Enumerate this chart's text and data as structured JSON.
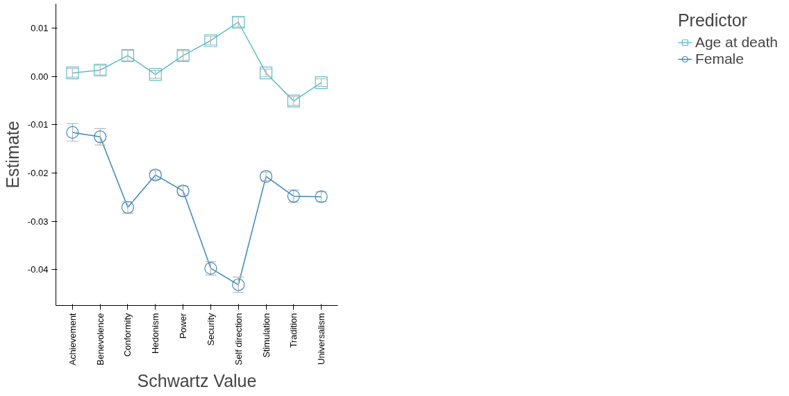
{
  "chart_data": {
    "type": "line",
    "xlabel": "Schwartz Value",
    "ylabel": "Estimate",
    "legend_title": "Predictor",
    "categories": [
      "Achievement",
      "Benevolence",
      "Conformity",
      "Hedonism",
      "Power",
      "Security",
      "Self direction",
      "Stimulation",
      "Tradition",
      "Universalism"
    ],
    "series": [
      {
        "name": "Age at death",
        "color": "#5bbfc6",
        "marker": "square",
        "values": [
          0.0007,
          0.0013,
          0.0043,
          0.0004,
          0.0043,
          0.0074,
          0.0112,
          0.0007,
          -0.0051,
          -0.0013
        ],
        "errors": [
          0.0009,
          0.001,
          0.0011,
          0.0008,
          0.001,
          0.0009,
          0.001,
          0.0008,
          0.0009,
          0.0008
        ]
      },
      {
        "name": "Female",
        "color": "#3a87bb",
        "marker": "circle",
        "values": [
          -0.0116,
          -0.0125,
          -0.0271,
          -0.0204,
          -0.0237,
          -0.0397,
          -0.0431,
          -0.0207,
          -0.0248,
          -0.0249
        ],
        "errors": [
          0.0018,
          0.0017,
          0.0012,
          0.0009,
          0.001,
          0.0014,
          0.0016,
          0.0009,
          0.0013,
          0.001
        ]
      }
    ],
    "ylim": [
      -0.0474,
      0.015
    ],
    "yticks": [
      {
        "value": 0.01,
        "label": "0.01"
      },
      {
        "value": 0.0,
        "label": "0.00"
      },
      {
        "value": -0.01,
        "label": "-0.01"
      },
      {
        "value": -0.02,
        "label": "-0.02"
      },
      {
        "value": -0.03,
        "label": "-0.03"
      },
      {
        "value": -0.04,
        "label": "-0.04"
      }
    ],
    "grid": false,
    "legend": "right",
    "line_style": "solid"
  }
}
